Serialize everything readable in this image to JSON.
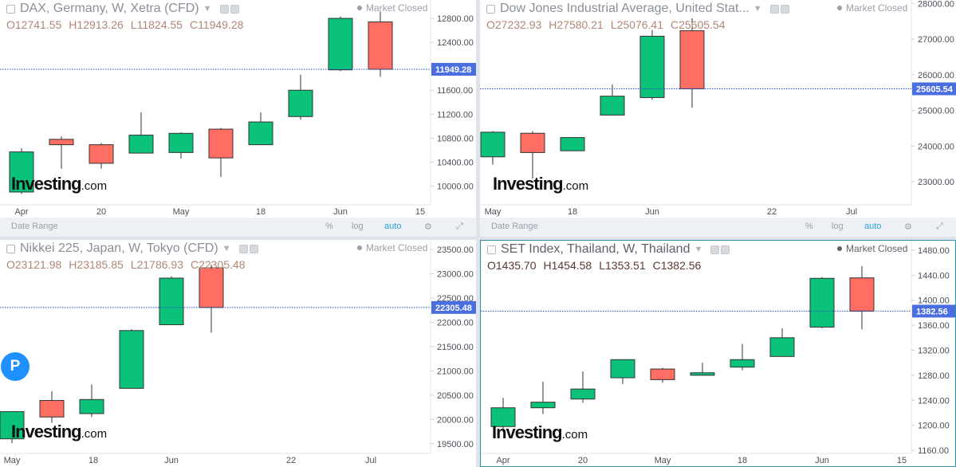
{
  "charts": [
    {
      "title": "DAX, Germany, W, Xetra (CFD)",
      "market_status": "Market Closed",
      "ohlc": {
        "o": "O12741.55",
        "h": "H12913.26",
        "l": "L11824.55",
        "c": "C11949.28"
      },
      "price_label": "11949.28",
      "logo": {
        "main": "Investing",
        "suffix": ".com"
      },
      "x_labels": [
        "Apr",
        "20",
        "May",
        "18",
        "Jun",
        "15"
      ],
      "y_ticks": [
        "12800.00",
        "12400.00",
        "12000.00",
        "11600.00",
        "11200.00",
        "10800.00",
        "10400.00",
        "10000.00"
      ],
      "toolbar": {
        "date_range": "Date Range",
        "percent": "%",
        "log": "log",
        "auto": "auto"
      },
      "chart_data": {
        "type": "candlestick",
        "ylim": [
          9700,
          13000
        ],
        "x_labels": [
          "Apr",
          "20",
          "May",
          "18",
          "Jun",
          "15"
        ],
        "y_ticks": [
          12800,
          12400,
          12000,
          11600,
          11200,
          10800,
          10400,
          10000
        ],
        "last_price": 11949.28,
        "candles": [
          {
            "o": 9900,
            "h": 10630,
            "l": 9870,
            "c": 10570
          },
          {
            "o": 10780,
            "h": 10830,
            "l": 10290,
            "c": 10690
          },
          {
            "o": 10690,
            "h": 10720,
            "l": 10290,
            "c": 10380
          },
          {
            "o": 10550,
            "h": 11230,
            "l": 10550,
            "c": 10850
          },
          {
            "o": 10560,
            "h": 10900,
            "l": 10460,
            "c": 10880
          },
          {
            "o": 10950,
            "h": 10970,
            "l": 10150,
            "c": 10470
          },
          {
            "o": 10690,
            "h": 11230,
            "l": 10690,
            "c": 11070
          },
          {
            "o": 11160,
            "h": 11860,
            "l": 11110,
            "c": 11600
          },
          {
            "o": 11940,
            "h": 12830,
            "l": 11920,
            "c": 12800
          },
          {
            "o": 12741.55,
            "h": 12913.26,
            "l": 11824.55,
            "c": 11949.28
          }
        ]
      }
    },
    {
      "title": "Dow Jones Industrial Average, United Stat...",
      "market_status": "Market Closed",
      "ohlc": {
        "o": "O27232.93",
        "h": "H27580.21",
        "l": "L25076.41",
        "c": "C25605.54"
      },
      "price_label": "25605.54",
      "logo": {
        "main": "Investing",
        "suffix": ".com"
      },
      "x_labels": [
        "May",
        "18",
        "Jun",
        "22",
        "Jul"
      ],
      "y_ticks": [
        "28000.00",
        "27000.00",
        "26000.00",
        "25000.00",
        "24000.00",
        "23000.00"
      ],
      "toolbar": {
        "date_range": "Date Range",
        "percent": "%",
        "log": "log",
        "auto": "auto"
      },
      "chart_data": {
        "type": "candlestick",
        "ylim": [
          22400,
          28050
        ],
        "x_labels": [
          "May",
          "18",
          "Jun",
          "22",
          "Jul"
        ],
        "y_ticks": [
          28000,
          27000,
          26000,
          25000,
          24000,
          23000
        ],
        "last_price": 25605.54,
        "candles": [
          {
            "o": 23700,
            "h": 24420,
            "l": 23480,
            "c": 24390
          },
          {
            "o": 24360,
            "h": 24420,
            "l": 23090,
            "c": 23820
          },
          {
            "o": 23870,
            "h": 24250,
            "l": 23870,
            "c": 24240
          },
          {
            "o": 24870,
            "h": 25730,
            "l": 24870,
            "c": 25400
          },
          {
            "o": 25360,
            "h": 27260,
            "l": 25300,
            "c": 27080
          },
          {
            "o": 27232.93,
            "h": 27580.21,
            "l": 25076.41,
            "c": 25605.54
          }
        ]
      }
    },
    {
      "title": "Nikkei 225, Japan, W, Tokyo (CFD)",
      "market_status": "Market Closed",
      "ohlc": {
        "o": "O23121.98",
        "h": "H23185.85",
        "l": "L21786.93",
        "c": "C22305.48"
      },
      "price_label": "22305.48",
      "logo": {
        "main": "Investing",
        "suffix": ".com"
      },
      "badge": "P",
      "x_labels": [
        "May",
        "18",
        "Jun",
        "22",
        "Jul"
      ],
      "y_ticks": [
        "23500.00",
        "23000.00",
        "22500.00",
        "22000.00",
        "21500.00",
        "21000.00",
        "20500.00",
        "20000.00",
        "19500.00"
      ],
      "chart_data": {
        "type": "candlestick",
        "ylim": [
          19250,
          23550
        ],
        "x_labels": [
          "May",
          "18",
          "Jun",
          "22",
          "Jul"
        ],
        "y_ticks": [
          23500,
          23000,
          22500,
          22000,
          21500,
          21000,
          20500,
          20000,
          19500
        ],
        "last_price": 22305.48,
        "candles": [
          {
            "o": 19600,
            "h": 20170,
            "l": 19510,
            "c": 20160
          },
          {
            "o": 20390,
            "h": 20580,
            "l": 19930,
            "c": 20050
          },
          {
            "o": 20120,
            "h": 20720,
            "l": 20050,
            "c": 20410
          },
          {
            "o": 20640,
            "h": 21860,
            "l": 20640,
            "c": 21830
          },
          {
            "o": 21950,
            "h": 22950,
            "l": 21950,
            "c": 22910
          },
          {
            "o": 23121.98,
            "h": 23185.85,
            "l": 21786.93,
            "c": 22305.48
          }
        ]
      }
    },
    {
      "title": "SET Index, Thailand, W, Thailand",
      "market_status": "Market Closed",
      "ohlc": {
        "o": "O1435.70",
        "h": "H1454.58",
        "l": "L1353.51",
        "c": "C1382.56"
      },
      "price_label": "1382.56",
      "logo": {
        "main": "Investing",
        "suffix": ".com"
      },
      "x_labels": [
        "Apr",
        "20",
        "May",
        "18",
        "Jun",
        "15"
      ],
      "y_ticks": [
        "1480.00",
        "1440.00",
        "1400.00",
        "1360.00",
        "1320.00",
        "1280.00",
        "1240.00",
        "1200.00",
        "1160.00"
      ],
      "chart_data": {
        "type": "candlestick",
        "ylim": [
          1155,
          1485
        ],
        "x_labels": [
          "Apr",
          "20",
          "May",
          "18",
          "Jun",
          "15"
        ],
        "y_ticks": [
          1480,
          1440,
          1400,
          1360,
          1320,
          1280,
          1240,
          1200,
          1160
        ],
        "last_price": 1382.56,
        "candles": [
          {
            "o": 1198,
            "h": 1244,
            "l": 1190,
            "c": 1228
          },
          {
            "o": 1228,
            "h": 1270,
            "l": 1218,
            "c": 1237
          },
          {
            "o": 1242,
            "h": 1286,
            "l": 1236,
            "c": 1258
          },
          {
            "o": 1276,
            "h": 1305,
            "l": 1266,
            "c": 1305
          },
          {
            "o": 1290,
            "h": 1292,
            "l": 1268,
            "c": 1273
          },
          {
            "o": 1280,
            "h": 1300,
            "l": 1280,
            "c": 1284
          },
          {
            "o": 1293,
            "h": 1330,
            "l": 1288,
            "c": 1305
          },
          {
            "o": 1310,
            "h": 1355,
            "l": 1310,
            "c": 1340
          },
          {
            "o": 1357,
            "h": 1437,
            "l": 1355,
            "c": 1435
          },
          {
            "o": 1435.7,
            "h": 1454.58,
            "l": 1353.51,
            "c": 1382.56
          }
        ]
      }
    }
  ],
  "colors": {
    "up": "#0bc27b",
    "down": "#ff6d63",
    "axis_badge": "#4a6ee0",
    "grid_line": "#2c4fc9"
  }
}
